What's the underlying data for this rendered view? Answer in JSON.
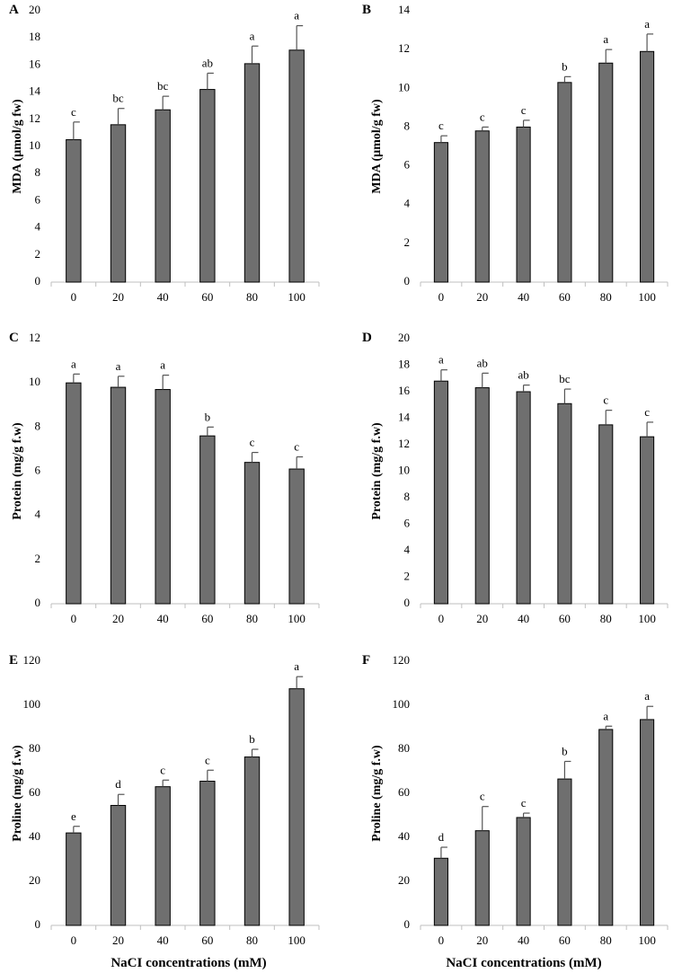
{
  "x_axis_label": "NaCI concentrations (mM)",
  "chart_data": [
    {
      "type": "bar",
      "panel": "A",
      "ylabel": "MDA (µmol/g fw)",
      "categories": [
        "0",
        "20",
        "40",
        "60",
        "80",
        "100"
      ],
      "values": [
        10.5,
        11.6,
        12.7,
        14.2,
        16.1,
        17.1
      ],
      "errors": [
        1.3,
        1.2,
        1.0,
        1.2,
        1.3,
        1.8
      ],
      "letters": [
        "c",
        "bc",
        "bc",
        "ab",
        "a",
        "a"
      ],
      "ylim": [
        0,
        20
      ],
      "yticks": [
        0,
        2,
        4,
        6,
        8,
        10,
        12,
        14,
        16,
        18,
        20
      ]
    },
    {
      "type": "bar",
      "panel": "B",
      "ylabel": "MDA (µmol/g fw)",
      "categories": [
        "0",
        "20",
        "40",
        "60",
        "80",
        "100"
      ],
      "values": [
        7.2,
        7.8,
        8.0,
        10.3,
        11.3,
        11.9
      ],
      "errors": [
        0.35,
        0.2,
        0.35,
        0.3,
        0.7,
        0.9
      ],
      "letters": [
        "c",
        "c",
        "c",
        "b",
        "a",
        "a"
      ],
      "ylim": [
        0,
        14
      ],
      "yticks": [
        0,
        2,
        4,
        6,
        8,
        10,
        12,
        14
      ]
    },
    {
      "type": "bar",
      "panel": "C",
      "ylabel": "Protein  (mg/g f.w)",
      "categories": [
        "0",
        "20",
        "40",
        "60",
        "80",
        "100"
      ],
      "values": [
        10.0,
        9.8,
        9.7,
        7.6,
        6.4,
        6.1
      ],
      "errors": [
        0.4,
        0.5,
        0.65,
        0.4,
        0.45,
        0.55
      ],
      "letters": [
        "a",
        "a",
        "a",
        "b",
        "c",
        "c"
      ],
      "ylim": [
        0,
        12
      ],
      "yticks": [
        0,
        2,
        4,
        6,
        8,
        10,
        12
      ]
    },
    {
      "type": "bar",
      "panel": "D",
      "ylabel": "Protein  (mg/g f.w)",
      "categories": [
        "0",
        "20",
        "40",
        "60",
        "80",
        "100"
      ],
      "values": [
        16.8,
        16.3,
        16.0,
        15.1,
        13.5,
        12.6
      ],
      "errors": [
        0.85,
        1.1,
        0.5,
        1.1,
        1.1,
        1.1
      ],
      "letters": [
        "a",
        "ab",
        "ab",
        "bc",
        "c",
        "c"
      ],
      "ylim": [
        0,
        20
      ],
      "yticks": [
        0,
        2,
        4,
        6,
        8,
        10,
        12,
        14,
        16,
        18,
        20
      ]
    },
    {
      "type": "bar",
      "panel": "E",
      "ylabel": "Proline  (mg/g f.w)",
      "categories": [
        "0",
        "20",
        "40",
        "60",
        "80",
        "100"
      ],
      "values": [
        42,
        54.5,
        63,
        65.5,
        76.5,
        107.5
      ],
      "errors": [
        3,
        5,
        3,
        5,
        3.5,
        5.5
      ],
      "letters": [
        "e",
        "d",
        "c",
        "c",
        "b",
        "a"
      ],
      "ylim": [
        0,
        120
      ],
      "yticks": [
        0,
        20,
        40,
        60,
        80,
        100,
        120
      ]
    },
    {
      "type": "bar",
      "panel": "F",
      "ylabel": "Proline  (mg/g f.w)",
      "categories": [
        "0",
        "20",
        "40",
        "60",
        "80",
        "100"
      ],
      "values": [
        30.5,
        43,
        49,
        66.5,
        89,
        93.5
      ],
      "errors": [
        5,
        11,
        2,
        8,
        1.5,
        6
      ],
      "letters": [
        "d",
        "c",
        "c",
        "b",
        "a",
        "a"
      ],
      "ylim": [
        0,
        120
      ],
      "yticks": [
        0,
        20,
        40,
        60,
        80,
        100,
        120
      ]
    }
  ]
}
